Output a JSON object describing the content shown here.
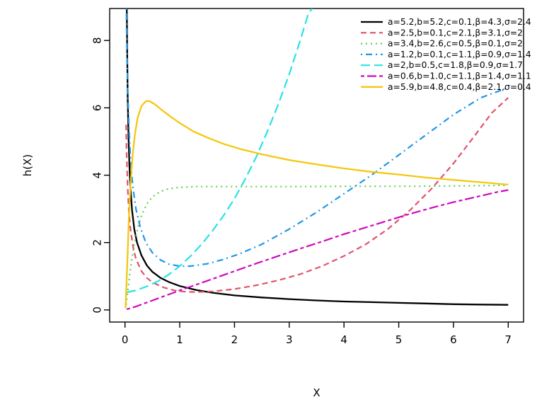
{
  "figure": {
    "xlabel": "X",
    "ylabel": "h(X)"
  },
  "chart_data": {
    "type": "line",
    "title": "",
    "xlabel": "X",
    "ylabel": "h(X)",
    "xlim": [
      -0.28,
      7.28
    ],
    "ylim": [
      -0.36,
      8.95
    ],
    "xticks": [
      0,
      1,
      2,
      3,
      4,
      5,
      6,
      7
    ],
    "yticks": [
      0,
      2,
      4,
      6,
      8
    ],
    "grid": false,
    "legend_position": "top-right",
    "series": [
      {
        "name": "a=5.2,b=5.2,c=0.1,β=4.3,σ=2.4",
        "color": "#000000",
        "linetype": "solid",
        "width": 2.3,
        "points": [
          [
            0.033,
            8.95
          ],
          [
            0.04,
            7.6
          ],
          [
            0.05,
            6.3
          ],
          [
            0.065,
            5.1
          ],
          [
            0.08,
            4.3
          ],
          [
            0.1,
            3.6
          ],
          [
            0.13,
            2.95
          ],
          [
            0.17,
            2.4
          ],
          [
            0.22,
            2.0
          ],
          [
            0.3,
            1.62
          ],
          [
            0.4,
            1.32
          ],
          [
            0.5,
            1.13
          ],
          [
            0.65,
            0.95
          ],
          [
            0.8,
            0.83
          ],
          [
            1.0,
            0.71
          ],
          [
            1.3,
            0.59
          ],
          [
            1.6,
            0.51
          ],
          [
            2.0,
            0.43
          ],
          [
            2.5,
            0.37
          ],
          [
            3.0,
            0.32
          ],
          [
            3.5,
            0.28
          ],
          [
            4.0,
            0.25
          ],
          [
            4.5,
            0.23
          ],
          [
            5.0,
            0.21
          ],
          [
            5.5,
            0.19
          ],
          [
            6.0,
            0.17
          ],
          [
            6.5,
            0.16
          ],
          [
            7.0,
            0.15
          ]
        ]
      },
      {
        "name": "a=2.5,b=0.1,c=2.1,β=3.1,σ=2",
        "color": "#DF536B",
        "linetype": "dashed",
        "width": 2.2,
        "points": [
          [
            0.02,
            5.5
          ],
          [
            0.03,
            4.6
          ],
          [
            0.05,
            3.6
          ],
          [
            0.07,
            2.95
          ],
          [
            0.1,
            2.4
          ],
          [
            0.15,
            1.85
          ],
          [
            0.2,
            1.52
          ],
          [
            0.3,
            1.15
          ],
          [
            0.4,
            0.95
          ],
          [
            0.5,
            0.82
          ],
          [
            0.7,
            0.67
          ],
          [
            0.9,
            0.58
          ],
          [
            1.1,
            0.54
          ],
          [
            1.3,
            0.53
          ],
          [
            1.6,
            0.55
          ],
          [
            2.0,
            0.62
          ],
          [
            2.4,
            0.73
          ],
          [
            2.8,
            0.88
          ],
          [
            3.2,
            1.06
          ],
          [
            3.6,
            1.3
          ],
          [
            4.0,
            1.6
          ],
          [
            4.4,
            1.95
          ],
          [
            4.8,
            2.4
          ],
          [
            5.2,
            2.95
          ],
          [
            5.6,
            3.6
          ],
          [
            6.0,
            4.35
          ],
          [
            6.4,
            5.2
          ],
          [
            6.7,
            5.85
          ],
          [
            7.0,
            6.3
          ]
        ]
      },
      {
        "name": "a=3.4,b=2.6,c=0.5,β=0.1,σ=2",
        "color": "#61D04F",
        "linetype": "dotted",
        "width": 2.2,
        "points": [
          [
            0.02,
            0.15
          ],
          [
            0.05,
            0.55
          ],
          [
            0.08,
            0.95
          ],
          [
            0.12,
            1.45
          ],
          [
            0.17,
            1.95
          ],
          [
            0.23,
            2.42
          ],
          [
            0.3,
            2.8
          ],
          [
            0.4,
            3.15
          ],
          [
            0.5,
            3.36
          ],
          [
            0.65,
            3.52
          ],
          [
            0.8,
            3.6
          ],
          [
            1.0,
            3.64
          ],
          [
            1.3,
            3.66
          ],
          [
            1.7,
            3.66
          ],
          [
            2.2,
            3.66
          ],
          [
            3.0,
            3.66
          ],
          [
            4.0,
            3.67
          ],
          [
            5.0,
            3.67
          ],
          [
            6.0,
            3.68
          ],
          [
            7.0,
            3.7
          ]
        ]
      },
      {
        "name": "a=1.2,b=0.1,c=1.1,β=0.9,σ=1.4",
        "color": "#2297E6",
        "linetype": "dotdash",
        "width": 2.2,
        "points": [
          [
            0.025,
            8.95
          ],
          [
            0.035,
            7.8
          ],
          [
            0.05,
            6.6
          ],
          [
            0.07,
            5.5
          ],
          [
            0.1,
            4.5
          ],
          [
            0.14,
            3.7
          ],
          [
            0.2,
            3.0
          ],
          [
            0.28,
            2.45
          ],
          [
            0.38,
            2.0
          ],
          [
            0.5,
            1.7
          ],
          [
            0.65,
            1.48
          ],
          [
            0.8,
            1.36
          ],
          [
            1.0,
            1.3
          ],
          [
            1.2,
            1.3
          ],
          [
            1.5,
            1.37
          ],
          [
            1.8,
            1.5
          ],
          [
            2.1,
            1.67
          ],
          [
            2.5,
            1.95
          ],
          [
            3.0,
            2.4
          ],
          [
            3.5,
            2.9
          ],
          [
            4.0,
            3.45
          ],
          [
            4.5,
            4.0
          ],
          [
            5.0,
            4.6
          ],
          [
            5.5,
            5.2
          ],
          [
            6.0,
            5.8
          ],
          [
            6.5,
            6.3
          ],
          [
            7.0,
            6.6
          ]
        ]
      },
      {
        "name": "a=2,b=0.5,c=1.8,β=0.9,σ=1.7",
        "color": "#28E2E5",
        "linetype": "longdash",
        "width": 2.2,
        "points": [
          [
            0.03,
            0.52
          ],
          [
            0.2,
            0.58
          ],
          [
            0.4,
            0.7
          ],
          [
            0.6,
            0.85
          ],
          [
            0.8,
            1.05
          ],
          [
            1.0,
            1.3
          ],
          [
            1.2,
            1.6
          ],
          [
            1.4,
            1.95
          ],
          [
            1.6,
            2.35
          ],
          [
            1.8,
            2.8
          ],
          [
            2.0,
            3.3
          ],
          [
            2.2,
            3.9
          ],
          [
            2.4,
            4.55
          ],
          [
            2.6,
            5.3
          ],
          [
            2.8,
            6.1
          ],
          [
            3.0,
            7.0
          ],
          [
            3.2,
            8.0
          ],
          [
            3.35,
            8.8
          ],
          [
            3.42,
            8.95
          ]
        ]
      },
      {
        "name": "a=0.6,b=1.0,c=1.1,β=1.4,σ=1.1",
        "color": "#CD0BBC",
        "linetype": "twodash",
        "width": 2.2,
        "points": [
          [
            0.03,
            0.02
          ],
          [
            0.2,
            0.1
          ],
          [
            0.4,
            0.22
          ],
          [
            0.6,
            0.34
          ],
          [
            0.8,
            0.46
          ],
          [
            1.0,
            0.58
          ],
          [
            1.3,
            0.75
          ],
          [
            1.6,
            0.92
          ],
          [
            2.0,
            1.15
          ],
          [
            2.4,
            1.38
          ],
          [
            2.8,
            1.6
          ],
          [
            3.2,
            1.82
          ],
          [
            3.6,
            2.03
          ],
          [
            4.0,
            2.25
          ],
          [
            4.4,
            2.45
          ],
          [
            4.8,
            2.65
          ],
          [
            5.2,
            2.85
          ],
          [
            5.6,
            3.03
          ],
          [
            6.0,
            3.2
          ],
          [
            6.4,
            3.35
          ],
          [
            6.8,
            3.5
          ],
          [
            7.0,
            3.56
          ]
        ]
      },
      {
        "name": "a=5.9,b=4.8,c=0.4,β=2.1,σ=0.4",
        "color": "#F5C710",
        "linetype": "solid",
        "width": 2.3,
        "points": [
          [
            0.01,
            0.05
          ],
          [
            0.04,
            1.3
          ],
          [
            0.07,
            2.7
          ],
          [
            0.1,
            3.7
          ],
          [
            0.14,
            4.6
          ],
          [
            0.18,
            5.2
          ],
          [
            0.23,
            5.7
          ],
          [
            0.3,
            6.05
          ],
          [
            0.38,
            6.2
          ],
          [
            0.45,
            6.2
          ],
          [
            0.55,
            6.1
          ],
          [
            0.7,
            5.9
          ],
          [
            0.85,
            5.72
          ],
          [
            1.0,
            5.55
          ],
          [
            1.25,
            5.3
          ],
          [
            1.5,
            5.12
          ],
          [
            1.8,
            4.93
          ],
          [
            2.1,
            4.78
          ],
          [
            2.5,
            4.62
          ],
          [
            3.0,
            4.45
          ],
          [
            3.5,
            4.32
          ],
          [
            4.0,
            4.2
          ],
          [
            4.5,
            4.1
          ],
          [
            5.0,
            4.02
          ],
          [
            5.5,
            3.93
          ],
          [
            6.0,
            3.86
          ],
          [
            6.5,
            3.79
          ],
          [
            7.0,
            3.72
          ]
        ]
      }
    ]
  }
}
